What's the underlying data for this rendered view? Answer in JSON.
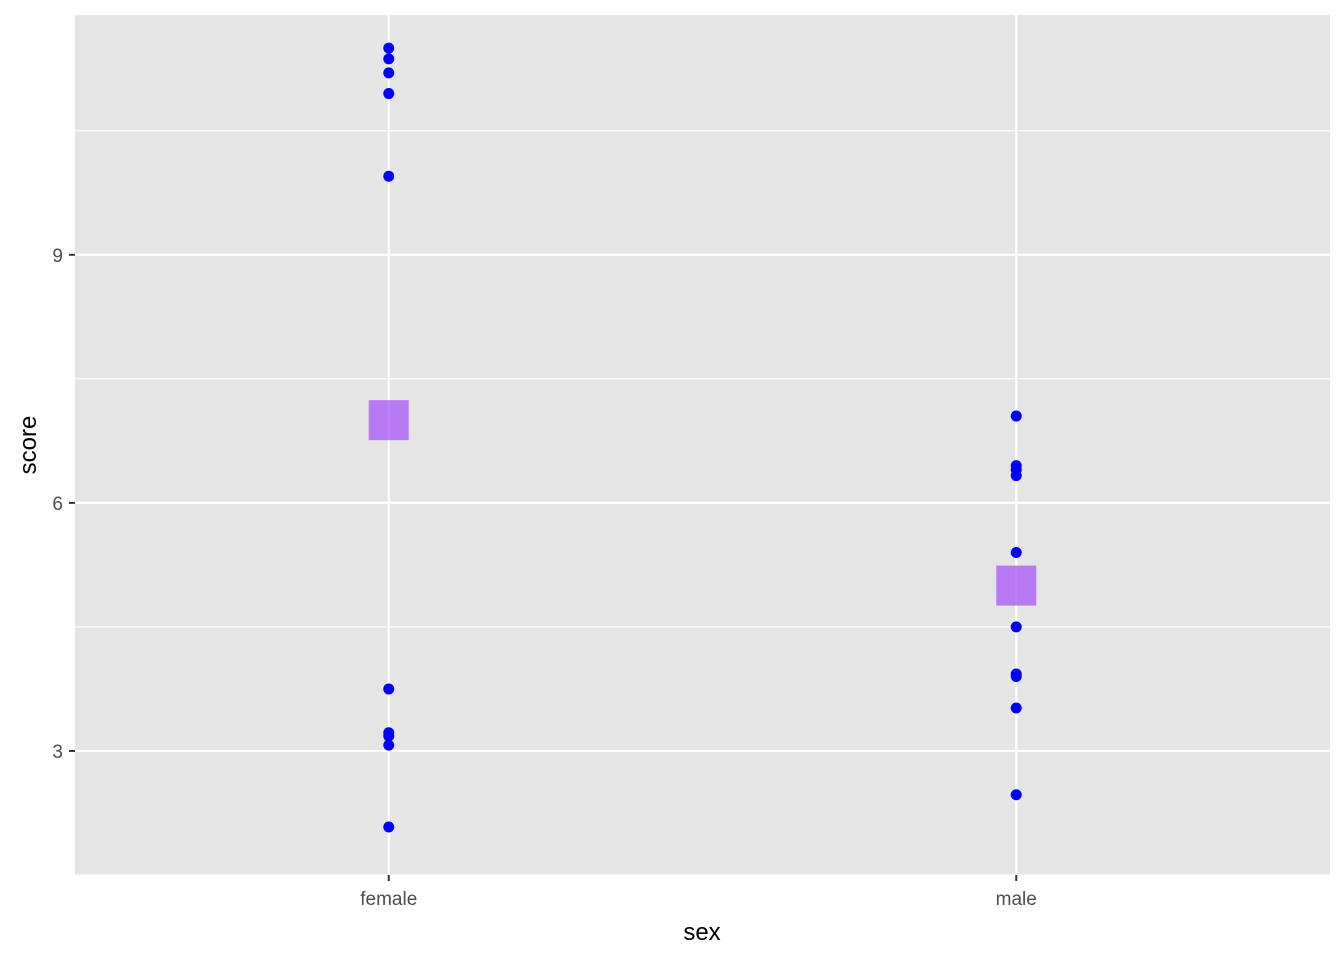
{
  "chart_data": {
    "type": "scatter",
    "xlabel": "sex",
    "ylabel": "score",
    "categories": [
      "female",
      "male"
    ],
    "ylim": [
      1.5,
      11.9
    ],
    "y_ticks": [
      3,
      6,
      9
    ],
    "y_tick_labels": [
      "3",
      "6",
      "9"
    ],
    "grid": true,
    "legend": "none",
    "series": [
      {
        "kind": "points",
        "color": "#0000ff",
        "points": [
          {
            "x": "female",
            "y": 11.5
          },
          {
            "x": "female",
            "y": 11.37
          },
          {
            "x": "female",
            "y": 11.2
          },
          {
            "x": "female",
            "y": 10.95
          },
          {
            "x": "female",
            "y": 9.95
          },
          {
            "x": "female",
            "y": 3.75
          },
          {
            "x": "female",
            "y": 3.22
          },
          {
            "x": "female",
            "y": 3.18
          },
          {
            "x": "female",
            "y": 3.07
          },
          {
            "x": "female",
            "y": 2.08
          },
          {
            "x": "male",
            "y": 7.05
          },
          {
            "x": "male",
            "y": 6.45
          },
          {
            "x": "male",
            "y": 6.4
          },
          {
            "x": "male",
            "y": 6.33
          },
          {
            "x": "male",
            "y": 5.4
          },
          {
            "x": "male",
            "y": 4.5
          },
          {
            "x": "male",
            "y": 3.93
          },
          {
            "x": "male",
            "y": 3.9
          },
          {
            "x": "male",
            "y": 3.52
          },
          {
            "x": "male",
            "y": 2.47
          }
        ]
      },
      {
        "kind": "mean",
        "color": "#a855f7",
        "opacity": 0.75,
        "points": [
          {
            "x": "female",
            "y": 7.0
          },
          {
            "x": "male",
            "y": 5.0
          }
        ]
      }
    ]
  }
}
